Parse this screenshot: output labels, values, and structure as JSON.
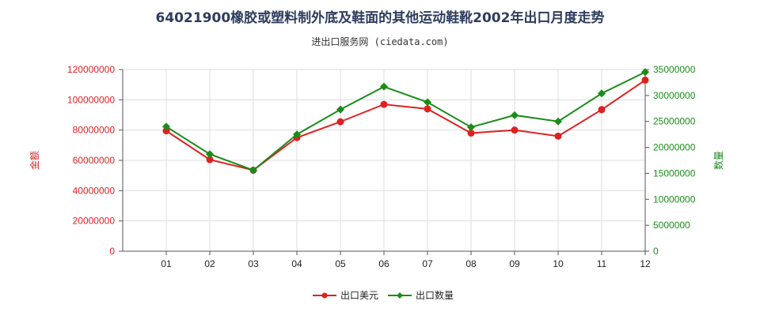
{
  "title": "64021900橡胶或塑料制外底及鞋面的其他运动鞋靴2002年出口月度走势",
  "subtitle": "进出口服务网 (ciedata.com)",
  "colors": {
    "left": "#e02020",
    "right": "#1a8c1a",
    "grid": "#dddddd"
  },
  "chart_data": {
    "type": "line",
    "categories": [
      "01",
      "02",
      "03",
      "04",
      "05",
      "06",
      "07",
      "08",
      "09",
      "10",
      "11",
      "12"
    ],
    "y_left": {
      "label": "金额",
      "ylim": [
        0,
        120000000
      ],
      "ticks": [
        "0",
        "20000000",
        "40000000",
        "60000000",
        "80000000",
        "100000000",
        "120000000"
      ]
    },
    "y_right": {
      "label": "数量",
      "ylim": [
        0,
        35000000
      ],
      "ticks": [
        "0",
        "5000000",
        "10000000",
        "15000000",
        "20000000",
        "25000000",
        "30000000",
        "35000000"
      ]
    },
    "series": [
      {
        "name": "出口美元",
        "axis": "left",
        "color": "#e02020",
        "marker": "circle",
        "values": [
          79500000,
          60500000,
          53500000,
          75000000,
          85500000,
          97000000,
          94000000,
          78000000,
          80000000,
          76000000,
          93500000,
          113000000
        ]
      },
      {
        "name": "出口数量",
        "axis": "right",
        "color": "#1a8c1a",
        "marker": "diamond",
        "values": [
          24000000,
          18700000,
          15600000,
          22500000,
          27300000,
          31700000,
          28700000,
          23900000,
          26200000,
          25000000,
          30400000,
          34500000
        ]
      }
    ],
    "grid": true,
    "legend": "bottom"
  }
}
